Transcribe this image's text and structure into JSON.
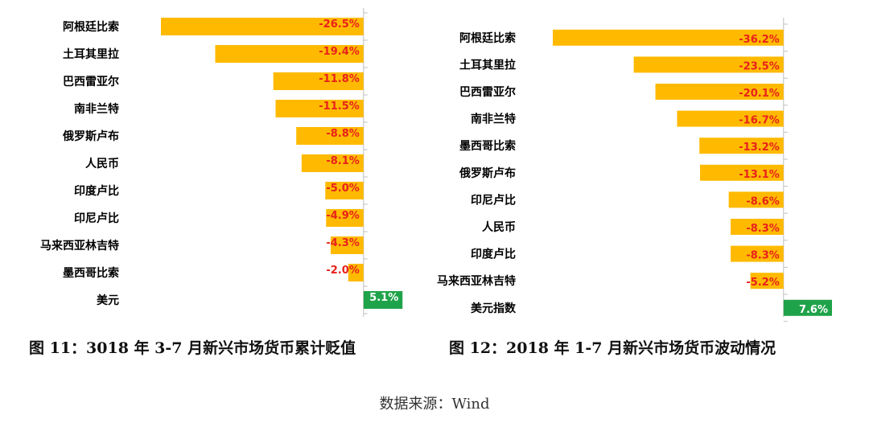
{
  "colors": {
    "negative_bar": "#FFBA00",
    "positive_bar": "#1FA34A",
    "negative_text": "#E8211C",
    "positive_text": "#FFFFFF"
  },
  "chart_data": [
    {
      "type": "bar",
      "orientation": "horizontal",
      "title": "",
      "xlabel": "",
      "ylabel": "",
      "xlim": [
        -26.5,
        7.6
      ],
      "categories": [
        "阿根廷比索",
        "土耳其里拉",
        "巴西雷亚尔",
        "南非兰特",
        "俄罗斯卢布",
        "人民币",
        "印度卢比",
        "印尼卢比",
        "马来西亚林吉特",
        "墨西哥比索",
        "美元"
      ],
      "values": [
        -26.5,
        -19.4,
        -11.8,
        -11.5,
        -8.8,
        -8.1,
        -5.0,
        -4.9,
        -4.3,
        -2.0,
        5.1
      ],
      "value_labels": [
        "-26.5%",
        "-19.4%",
        "-11.8%",
        "-11.5%",
        "-8.8%",
        "-8.1%",
        "-5.0%",
        "-4.9%",
        "-4.3%",
        "-2.0%",
        "5.1%"
      ],
      "grid": false
    },
    {
      "type": "bar",
      "orientation": "horizontal",
      "title": "",
      "xlabel": "",
      "ylabel": "",
      "xlim": [
        -36.2,
        7.6
      ],
      "categories": [
        "阿根廷比索",
        "土耳其里拉",
        "巴西雷亚尔",
        "南非兰特",
        "墨西哥比索",
        "俄罗斯卢布",
        "印尼卢比",
        "人民币",
        "印度卢比",
        "马来西亚林吉特",
        "美元指数"
      ],
      "values": [
        -36.2,
        -23.5,
        -20.1,
        -16.7,
        -13.2,
        -13.1,
        -8.6,
        -8.3,
        -8.3,
        -5.2,
        7.6
      ],
      "value_labels": [
        "-36.2%",
        "-23.5%",
        "-20.1%",
        "-16.7%",
        "-13.2%",
        "-13.1%",
        "-8.6%",
        "-8.3%",
        "-8.3%",
        "-5.2%",
        "7.6%"
      ],
      "grid": false
    }
  ],
  "captions": {
    "left": "图 11：3018 年 3-7 月新兴市场货币累计贬值",
    "right": "图 12：2018 年 1-7 月新兴市场货币波动情况"
  },
  "source": "数据来源：Wind"
}
